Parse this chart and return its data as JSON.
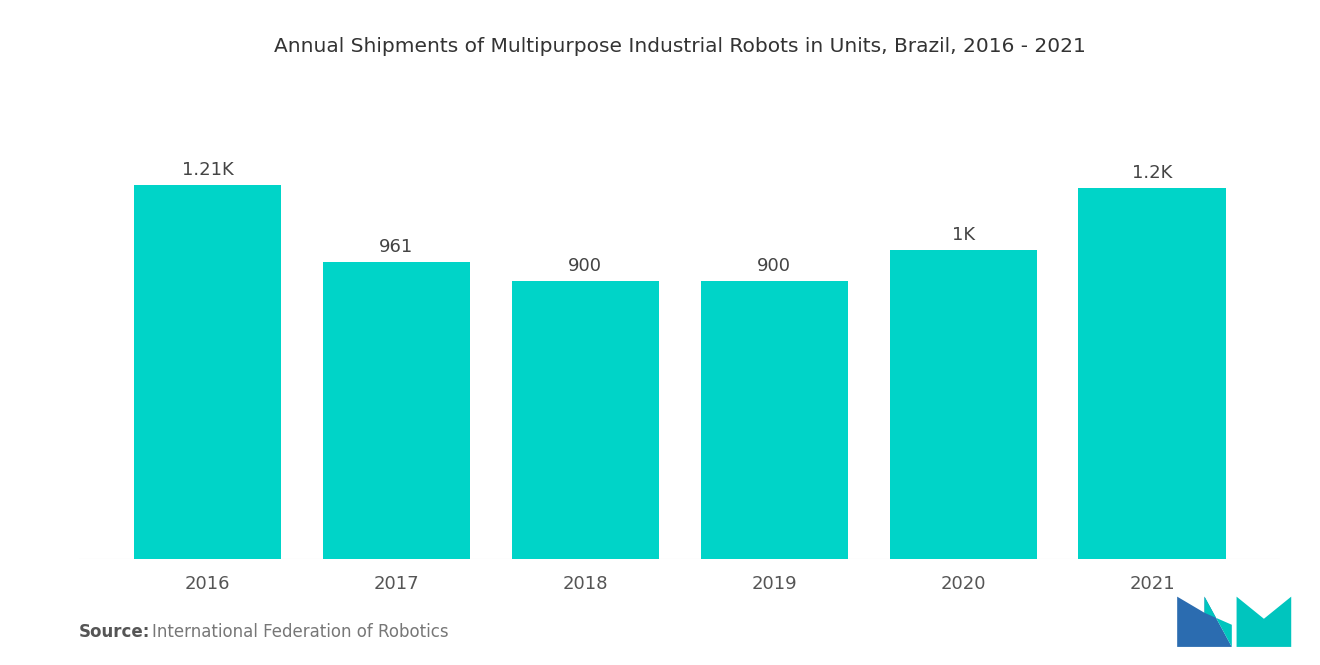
{
  "title": "Annual Shipments of Multipurpose Industrial Robots in Units, Brazil, 2016 - 2021",
  "categories": [
    "2016",
    "2017",
    "2018",
    "2019",
    "2020",
    "2021"
  ],
  "values": [
    1210,
    961,
    900,
    900,
    1000,
    1200
  ],
  "labels": [
    "1.21K",
    "961",
    "900",
    "900",
    "1K",
    "1.2K"
  ],
  "bar_color": "#00D4C8",
  "background_color": "#ffffff",
  "source_bold": "Source:",
  "source_normal": "  International Federation of Robotics",
  "title_fontsize": 14.5,
  "label_fontsize": 13,
  "tick_fontsize": 13,
  "source_fontsize": 12,
  "ylim": [
    0,
    1550
  ],
  "bar_width": 0.78,
  "logo_blue": "#2B6CB0",
  "logo_teal": "#00C5BE"
}
